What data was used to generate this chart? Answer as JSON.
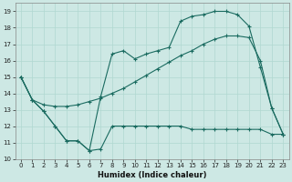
{
  "xlabel": "Humidex (Indice chaleur)",
  "bg_color": "#cde8e4",
  "line_color": "#1a6b60",
  "grid_color": "#b0d8d0",
  "xlim": [
    -0.5,
    23.5
  ],
  "ylim": [
    10,
    19.5
  ],
  "xticks": [
    0,
    1,
    2,
    3,
    4,
    5,
    6,
    7,
    8,
    9,
    10,
    11,
    12,
    13,
    14,
    15,
    16,
    17,
    18,
    19,
    20,
    21,
    22,
    23
  ],
  "yticks": [
    10,
    11,
    12,
    13,
    14,
    15,
    16,
    17,
    18,
    19
  ],
  "series1_x": [
    0,
    1,
    2,
    3,
    4,
    5,
    6,
    7,
    8,
    9,
    10,
    11,
    12,
    13,
    14,
    15,
    16,
    17,
    18,
    19,
    20,
    21,
    22,
    23
  ],
  "series1_y": [
    15.0,
    13.6,
    12.9,
    12.0,
    11.1,
    11.1,
    10.5,
    10.6,
    12.0,
    12.0,
    12.0,
    12.0,
    12.0,
    12.0,
    12.0,
    11.8,
    11.8,
    11.8,
    11.8,
    11.8,
    11.8,
    11.8,
    11.5,
    11.5
  ],
  "series2_x": [
    0,
    1,
    2,
    3,
    4,
    5,
    6,
    7,
    8,
    9,
    10,
    11,
    12,
    13,
    14,
    15,
    16,
    17,
    18,
    19,
    20,
    21,
    22,
    23
  ],
  "series2_y": [
    15.0,
    13.6,
    13.3,
    13.2,
    13.2,
    13.3,
    13.5,
    13.7,
    14.0,
    14.3,
    14.7,
    15.1,
    15.5,
    15.9,
    16.3,
    16.6,
    17.0,
    17.3,
    17.5,
    17.5,
    17.4,
    16.0,
    13.1,
    11.5
  ],
  "series3_x": [
    0,
    1,
    2,
    3,
    4,
    5,
    6,
    7,
    8,
    9,
    10,
    11,
    12,
    13,
    14,
    15,
    16,
    17,
    18,
    19,
    20,
    21,
    22,
    23
  ],
  "series3_y": [
    15.0,
    13.6,
    12.9,
    12.0,
    11.1,
    11.1,
    10.5,
    13.8,
    16.4,
    16.6,
    16.1,
    16.4,
    16.6,
    16.8,
    18.4,
    18.7,
    18.8,
    19.0,
    19.0,
    18.8,
    18.1,
    15.6,
    13.1,
    11.5
  ]
}
